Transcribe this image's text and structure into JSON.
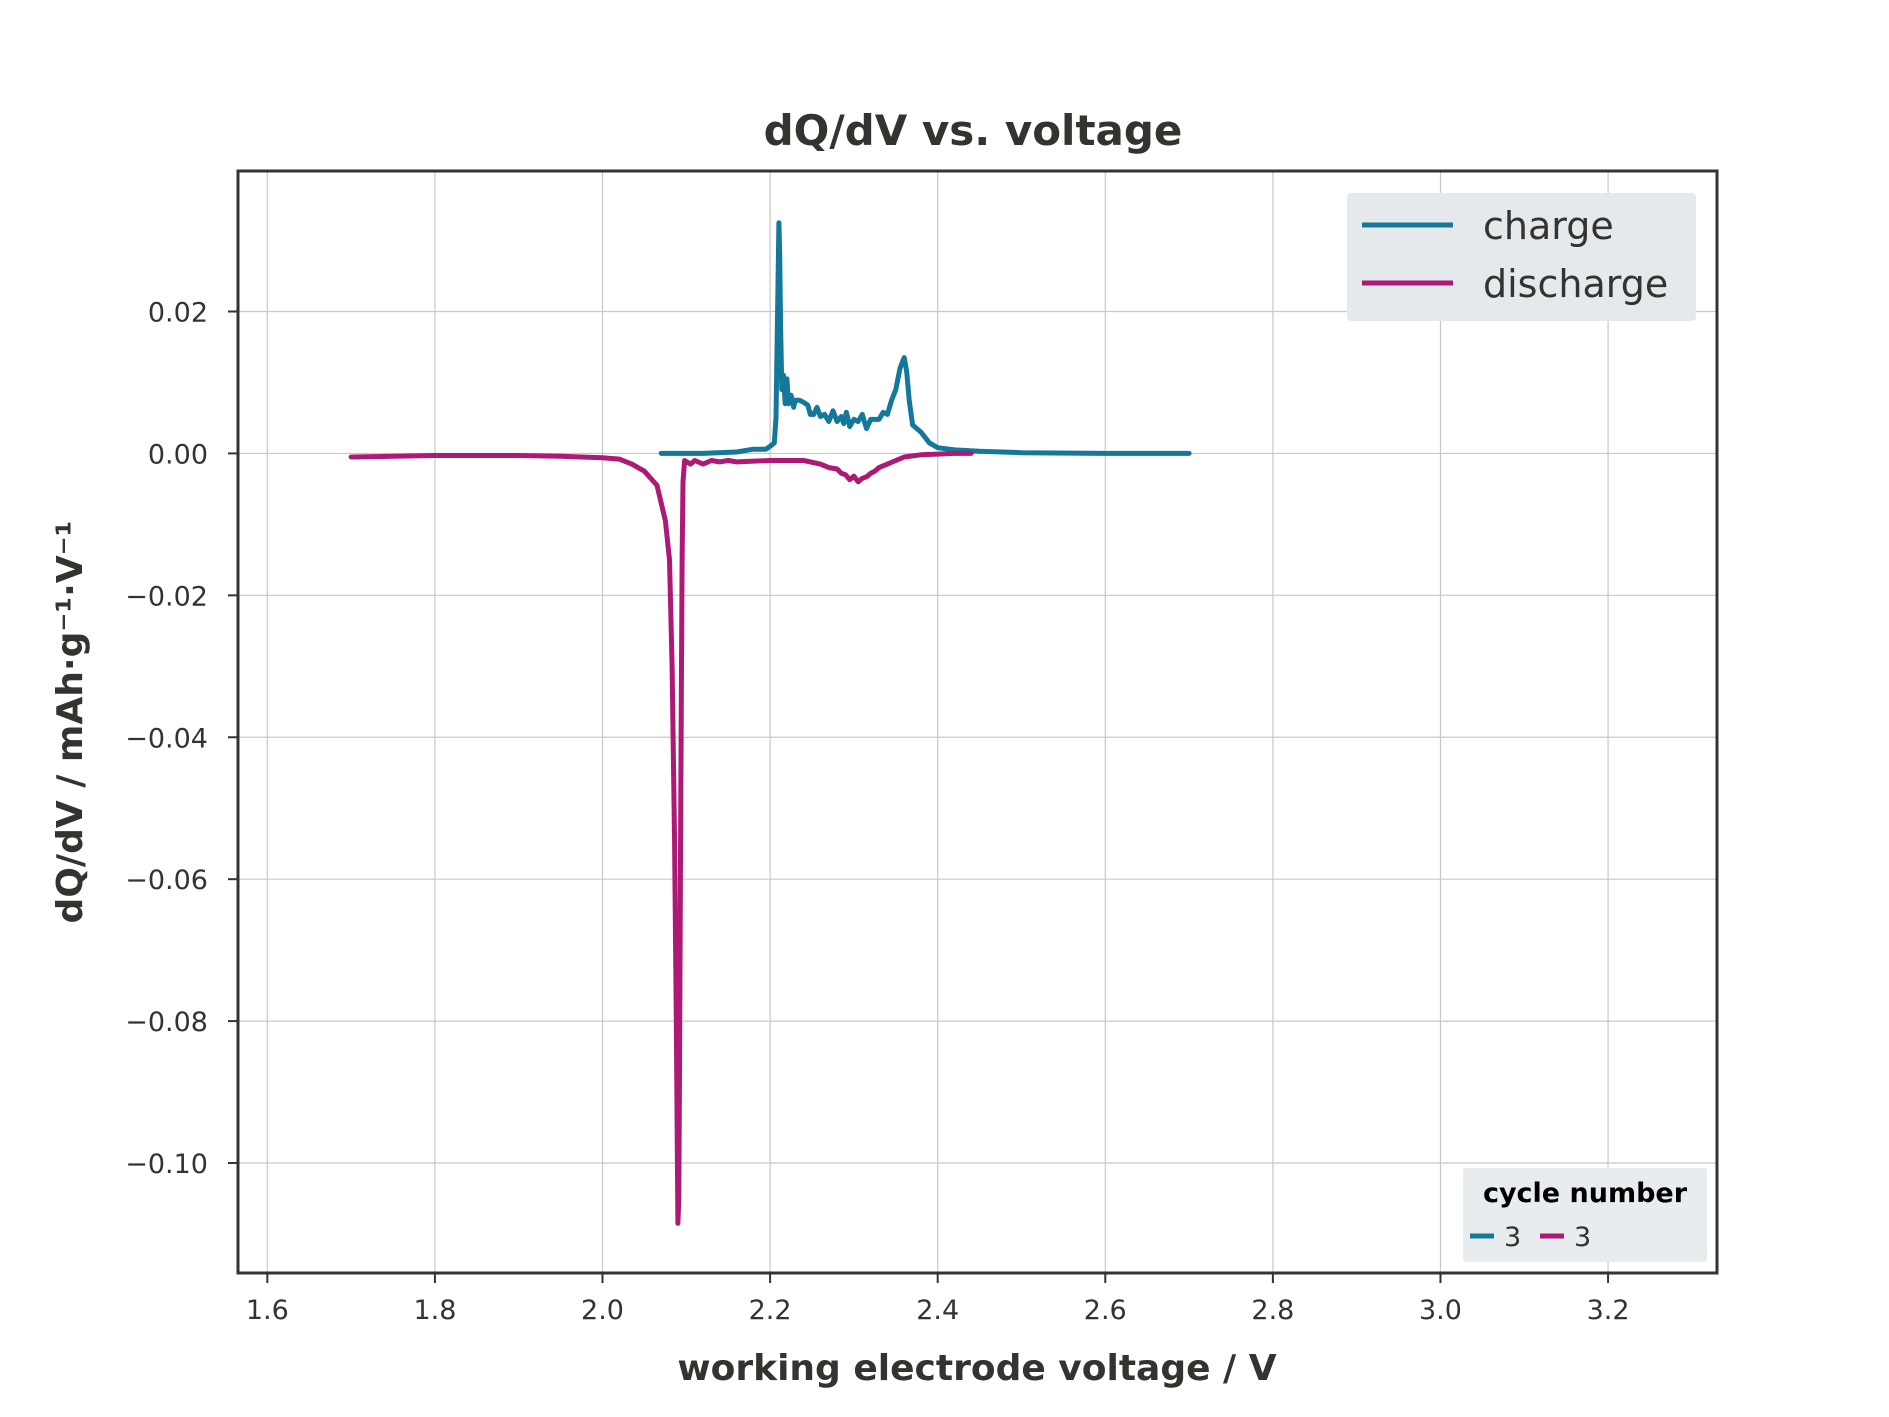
{
  "chart_data": {
    "type": "line",
    "title": "dQ/dV vs. voltage",
    "xlabel": "working electrode voltage / V",
    "ylabel": "dQ/dV / mAh·g⁻¹·V⁻¹",
    "xlim": [
      1.565,
      3.33
    ],
    "ylim": [
      -0.1155,
      0.0398
    ],
    "x_ticks": [
      {
        "value": 1.6,
        "label": "1.6"
      },
      {
        "value": 1.8,
        "label": "1.8"
      },
      {
        "value": 2.0,
        "label": "2.0"
      },
      {
        "value": 2.2,
        "label": "2.2"
      },
      {
        "value": 2.4,
        "label": "2.4"
      },
      {
        "value": 2.6,
        "label": "2.6"
      },
      {
        "value": 2.8,
        "label": "2.8"
      },
      {
        "value": 3.0,
        "label": "3.0"
      },
      {
        "value": 3.2,
        "label": "3.2"
      }
    ],
    "y_ticks": [
      {
        "value": 0.02,
        "label": "0.02"
      },
      {
        "value": 0.0,
        "label": "0.00"
      },
      {
        "value": -0.02,
        "label": "−0.02"
      },
      {
        "value": -0.04,
        "label": "−0.04"
      },
      {
        "value": -0.06,
        "label": "−0.06"
      },
      {
        "value": -0.08,
        "label": "−0.08"
      },
      {
        "value": -0.1,
        "label": "−0.10"
      }
    ],
    "grid": true,
    "legend": {
      "placement": "top-right",
      "entries": [
        "charge",
        "discharge"
      ]
    },
    "cycle_legend": {
      "placement": "bottom-right",
      "title": "cycle number",
      "entries": [
        {
          "label": "3",
          "color": "#13789a"
        },
        {
          "label": "3",
          "color": "#ad1a76"
        }
      ]
    },
    "series": [
      {
        "name": "charge",
        "color": "#13789a",
        "points": [
          [
            2.07,
            0.0
          ],
          [
            2.12,
            0.0
          ],
          [
            2.16,
            0.0002
          ],
          [
            2.18,
            0.0006
          ],
          [
            2.195,
            0.0006
          ],
          [
            2.2,
            0.001
          ],
          [
            2.205,
            0.0015
          ],
          [
            2.207,
            0.005
          ],
          [
            2.209,
            0.02
          ],
          [
            2.2105,
            0.0325
          ],
          [
            2.2115,
            0.028
          ],
          [
            2.2125,
            0.018
          ],
          [
            2.214,
            0.009
          ],
          [
            2.216,
            0.011
          ],
          [
            2.218,
            0.007
          ],
          [
            2.22,
            0.0105
          ],
          [
            2.222,
            0.007
          ],
          [
            2.225,
            0.0082
          ],
          [
            2.228,
            0.0065
          ],
          [
            2.23,
            0.0075
          ],
          [
            2.235,
            0.0075
          ],
          [
            2.24,
            0.0072
          ],
          [
            2.245,
            0.0068
          ],
          [
            2.248,
            0.0055
          ],
          [
            2.252,
            0.0055
          ],
          [
            2.256,
            0.0065
          ],
          [
            2.26,
            0.0052
          ],
          [
            2.265,
            0.0055
          ],
          [
            2.27,
            0.0045
          ],
          [
            2.275,
            0.006
          ],
          [
            2.28,
            0.0045
          ],
          [
            2.285,
            0.0052
          ],
          [
            2.288,
            0.0042
          ],
          [
            2.291,
            0.0058
          ],
          [
            2.295,
            0.0038
          ],
          [
            2.3,
            0.0048
          ],
          [
            2.305,
            0.0045
          ],
          [
            2.31,
            0.0055
          ],
          [
            2.315,
            0.0035
          ],
          [
            2.32,
            0.0048
          ],
          [
            2.33,
            0.0048
          ],
          [
            2.335,
            0.0058
          ],
          [
            2.34,
            0.0055
          ],
          [
            2.345,
            0.0075
          ],
          [
            2.35,
            0.009
          ],
          [
            2.355,
            0.012
          ],
          [
            2.36,
            0.0135
          ],
          [
            2.363,
            0.0115
          ],
          [
            2.366,
            0.0075
          ],
          [
            2.37,
            0.004
          ],
          [
            2.38,
            0.003
          ],
          [
            2.39,
            0.0015
          ],
          [
            2.4,
            0.0008
          ],
          [
            2.42,
            0.0005
          ],
          [
            2.45,
            0.0003
          ],
          [
            2.5,
            0.0001
          ],
          [
            2.6,
            0.0
          ],
          [
            2.7,
            0.0
          ]
        ]
      },
      {
        "name": "discharge",
        "color": "#ad1a76",
        "points": [
          [
            1.7,
            -0.0005
          ],
          [
            1.8,
            -0.0003
          ],
          [
            1.9,
            -0.0003
          ],
          [
            1.95,
            -0.0004
          ],
          [
            2.0,
            -0.0006
          ],
          [
            2.02,
            -0.0008
          ],
          [
            2.035,
            -0.0015
          ],
          [
            2.05,
            -0.0025
          ],
          [
            2.065,
            -0.0045
          ],
          [
            2.07,
            -0.007
          ],
          [
            2.075,
            -0.0095
          ],
          [
            2.08,
            -0.015
          ],
          [
            2.083,
            -0.03
          ],
          [
            2.086,
            -0.055
          ],
          [
            2.088,
            -0.08
          ],
          [
            2.09,
            -0.1085
          ],
          [
            2.091,
            -0.105
          ],
          [
            2.092,
            -0.085
          ],
          [
            2.093,
            -0.06
          ],
          [
            2.094,
            -0.035
          ],
          [
            2.095,
            -0.015
          ],
          [
            2.096,
            -0.004
          ],
          [
            2.098,
            -0.001
          ],
          [
            2.105,
            -0.0015
          ],
          [
            2.11,
            -0.001
          ],
          [
            2.12,
            -0.0015
          ],
          [
            2.13,
            -0.001
          ],
          [
            2.14,
            -0.0012
          ],
          [
            2.15,
            -0.001
          ],
          [
            2.16,
            -0.0012
          ],
          [
            2.2,
            -0.001
          ],
          [
            2.24,
            -0.001
          ],
          [
            2.26,
            -0.0015
          ],
          [
            2.27,
            -0.002
          ],
          [
            2.28,
            -0.0022
          ],
          [
            2.285,
            -0.0028
          ],
          [
            2.29,
            -0.003
          ],
          [
            2.295,
            -0.0037
          ],
          [
            2.3,
            -0.0032
          ],
          [
            2.305,
            -0.004
          ],
          [
            2.31,
            -0.0035
          ],
          [
            2.315,
            -0.0033
          ],
          [
            2.32,
            -0.0028
          ],
          [
            2.325,
            -0.0025
          ],
          [
            2.33,
            -0.002
          ],
          [
            2.34,
            -0.0015
          ],
          [
            2.35,
            -0.001
          ],
          [
            2.36,
            -0.0005
          ],
          [
            2.38,
            -0.0002
          ],
          [
            2.4,
            -0.0001
          ],
          [
            2.42,
            0.0
          ],
          [
            2.44,
            0.0
          ]
        ]
      }
    ]
  }
}
